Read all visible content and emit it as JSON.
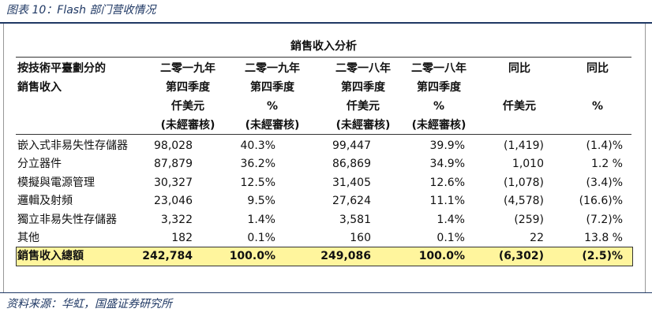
{
  "header": {
    "title": "图表 10：Flash 部门营收情况"
  },
  "table": {
    "caption": "銷售收入分析",
    "columns": [
      [
        "按技術平臺劃分的",
        "銷售收入"
      ],
      [
        "二零一九年",
        "第四季度",
        "仟美元",
        "(未經審核)"
      ],
      [
        "二零一九年",
        "第四季度",
        "%",
        "(未經審核)"
      ],
      [
        "二零一八年",
        "第四季度",
        "仟美元",
        "(未經審核)"
      ],
      [
        "二零一八年",
        "第四季度",
        "%",
        "(未經審核)"
      ],
      [
        "同比",
        null,
        "仟美元"
      ],
      [
        "同比",
        null,
        "%"
      ]
    ],
    "rows": [
      [
        "嵌入式非易失性存儲器",
        "98,028",
        "40.3%",
        "99,447",
        "39.9%",
        "(1,419)",
        "(1.4)%"
      ],
      [
        "分立器件",
        "87,879",
        "36.2%",
        "86,869",
        "34.9%",
        "1,010",
        "1.2 %"
      ],
      [
        "模擬與電源管理",
        "30,327",
        "12.5%",
        "31,405",
        "12.6%",
        "(1,078)",
        "(3.4)%"
      ],
      [
        "邏輯及射頻",
        "23,046",
        "9.5%",
        "27,624",
        "11.1%",
        "(4,578)",
        "(16.6)%"
      ],
      [
        "獨立非易失性存儲器",
        "3,322",
        "1.4%",
        "3,581",
        "1.4%",
        "(259)",
        "(7.2)%"
      ],
      [
        "其他",
        "182",
        "0.1%",
        "160",
        "0.1%",
        "22",
        "13.8 %"
      ]
    ],
    "total": [
      "銷售收入總額",
      "242,784",
      "100.0%",
      "249,086",
      "100.0%",
      "(6,302)",
      "(2.5)%"
    ]
  },
  "footer": {
    "source": "资料来源：华虹，国盛证券研究所"
  }
}
